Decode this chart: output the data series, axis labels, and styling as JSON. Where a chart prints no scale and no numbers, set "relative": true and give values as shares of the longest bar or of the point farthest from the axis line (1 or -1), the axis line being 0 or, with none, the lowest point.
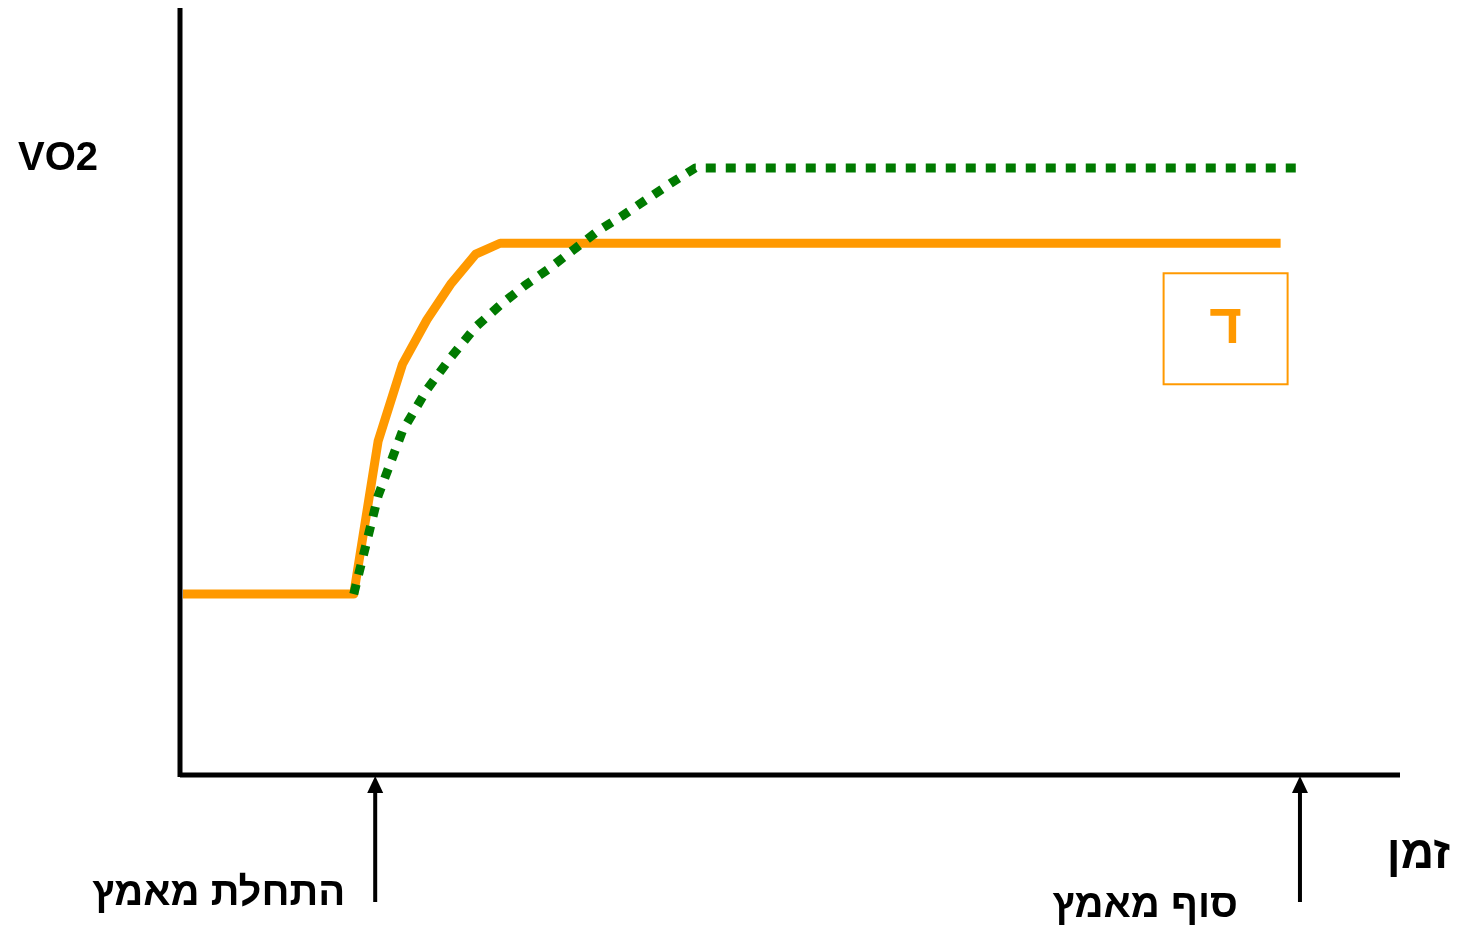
{
  "chart_data": {
    "type": "line",
    "relative": true,
    "xlabel": "זמן",
    "ylabel": "VO2",
    "categories": [
      null,
      null,
      null,
      null,
      null,
      null,
      null,
      null,
      null,
      null,
      null,
      null,
      null,
      null,
      null,
      null,
      null,
      null,
      null,
      null,
      null,
      null,
      null,
      null,
      null,
      null,
      null,
      null,
      null,
      null,
      null,
      null,
      null,
      null,
      null,
      null,
      null,
      null,
      null,
      null,
      null,
      null,
      null,
      null,
      null,
      null,
      null
    ],
    "series": [
      {
        "name": "ד",
        "color": "#ff9900",
        "line_style": "solid",
        "values": [
          0.298,
          0.298,
          0.298,
          0.298,
          0.298,
          0.298,
          0.298,
          0.298,
          0.55,
          0.677,
          0.75,
          0.81,
          0.858,
          0.876,
          0.876,
          0.876,
          0.876,
          0.876,
          0.876,
          0.876,
          0.876,
          0.876,
          0.876,
          0.876,
          0.876,
          0.876,
          0.876,
          0.876,
          0.876,
          0.876,
          0.876,
          0.876,
          0.876,
          0.876,
          0.876,
          0.876,
          0.876,
          0.876,
          0.876,
          0.876,
          0.876,
          0.876,
          0.876,
          0.876,
          0.876,
          0.876,
          null
        ]
      },
      {
        "color": "#007a00",
        "line_style": "dotted",
        "values": [
          null,
          null,
          null,
          null,
          null,
          null,
          null,
          0.298,
          0.46,
          0.567,
          0.635,
          0.689,
          0.738,
          0.774,
          0.806,
          0.834,
          0.865,
          0.896,
          0.921,
          0.948,
          0.975,
          1,
          1,
          1,
          1,
          1,
          1,
          1,
          1,
          1,
          1,
          1,
          1,
          1,
          1,
          1,
          1,
          1,
          1,
          1,
          1,
          1,
          1,
          1,
          1,
          1,
          1
        ]
      }
    ],
    "annotations": [
      "התחלת מאמץ",
      "סוף מאמץ"
    ]
  }
}
